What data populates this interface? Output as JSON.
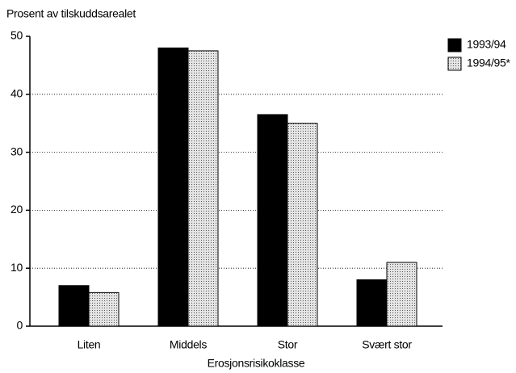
{
  "chart_data": {
    "type": "bar",
    "ylabel": "Prosent av tilskuddsarealet",
    "xlabel": "Erosjonsrisikoklasse",
    "categories": [
      "Liten",
      "Middels",
      "Stor",
      "Svært stor"
    ],
    "series": [
      {
        "name": "1993/94",
        "color": "#000000",
        "values": [
          7,
          48,
          36.5,
          8
        ]
      },
      {
        "name": "1994/95*",
        "color": "#c8c8c8",
        "values": [
          5.8,
          47.5,
          35,
          11
        ]
      }
    ],
    "ylim": [
      0,
      50
    ],
    "yticks": [
      0,
      10,
      20,
      30,
      40,
      50
    ],
    "grid": true,
    "legend": "upper right"
  }
}
